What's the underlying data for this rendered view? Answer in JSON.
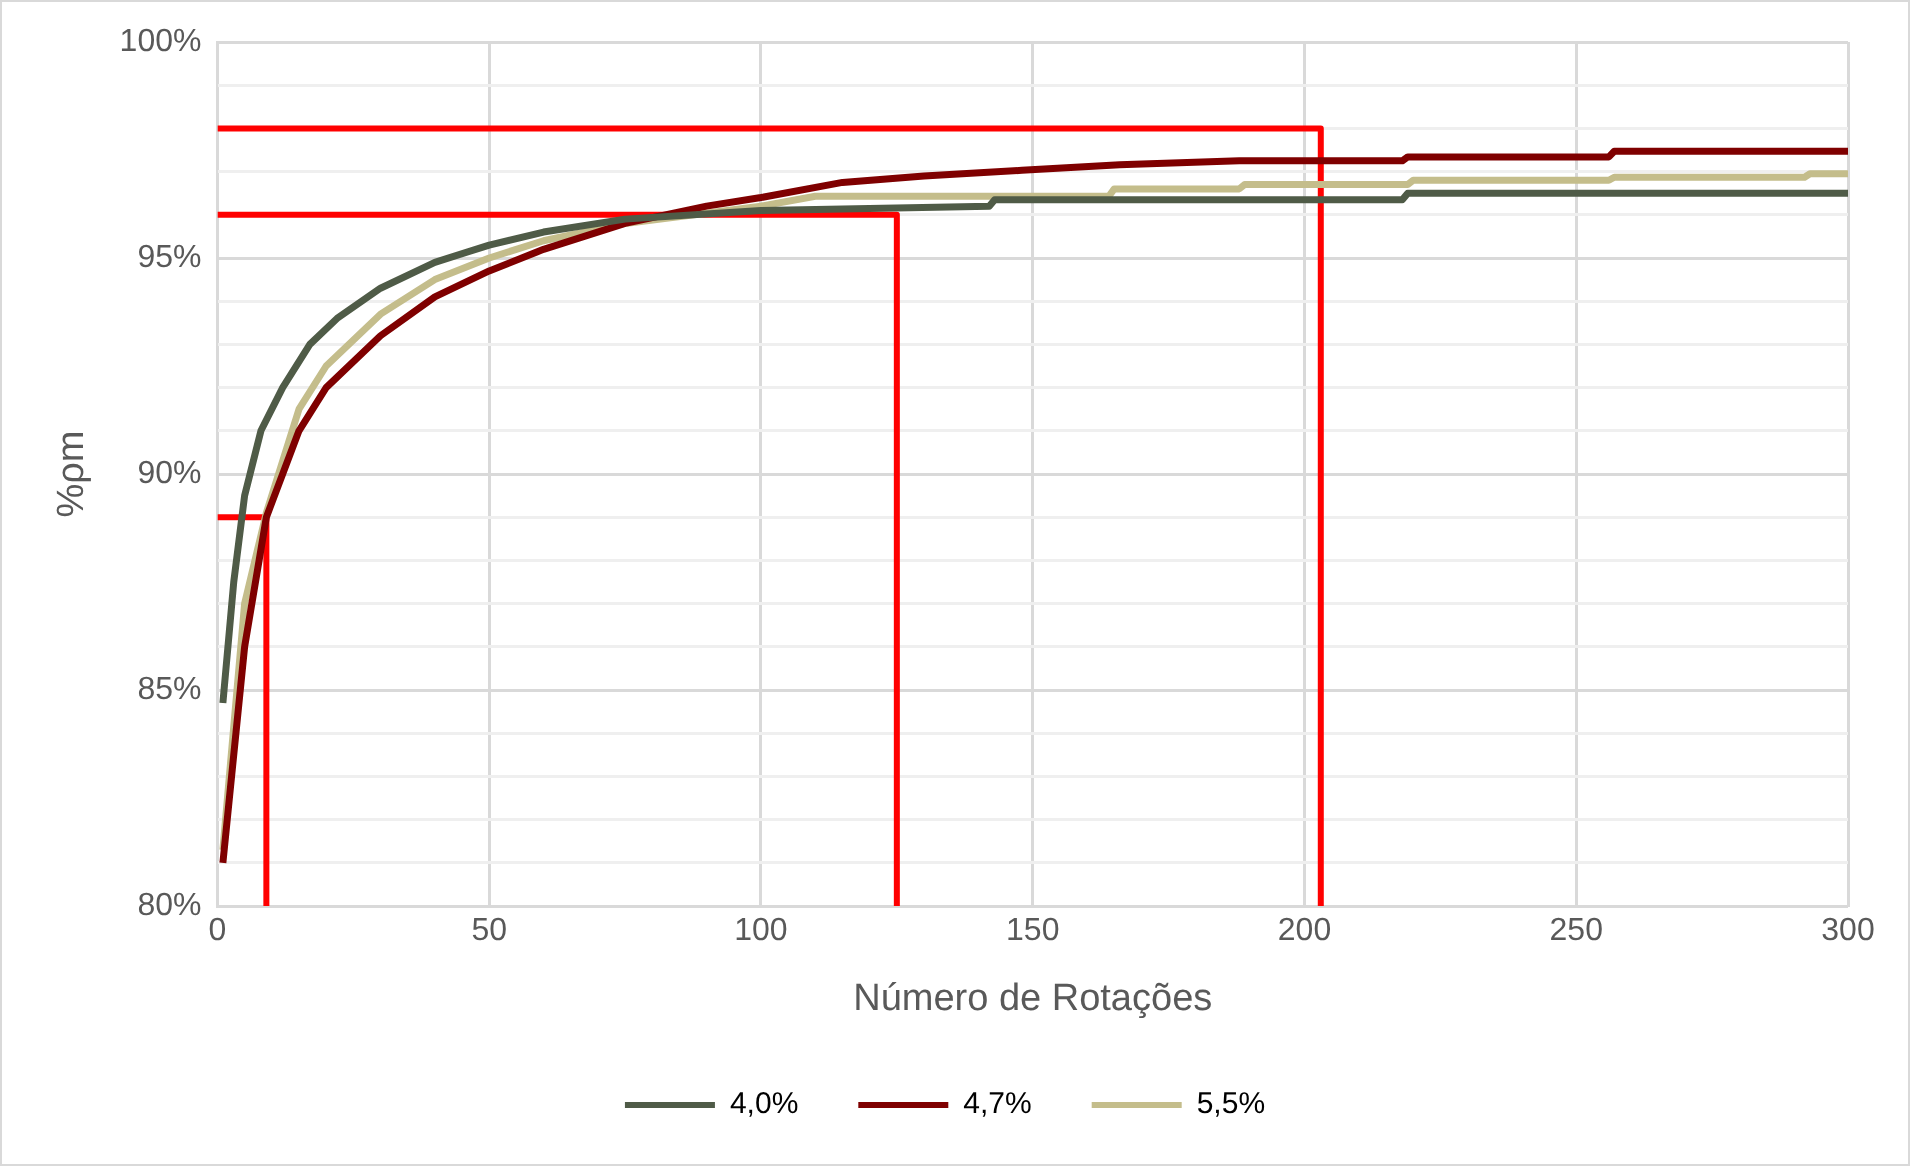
{
  "chart_data": {
    "type": "line",
    "xlabel": "Número de Rotações",
    "ylabel": "%ρm",
    "xlim": [
      0,
      300
    ],
    "xticks": [
      0,
      50,
      100,
      150,
      200,
      250,
      300
    ],
    "ylim": [
      80,
      100
    ],
    "yticks": [
      {
        "value": 80,
        "label": "80%"
      },
      {
        "value": 81,
        "label": null
      },
      {
        "value": 82,
        "label": null
      },
      {
        "value": 83,
        "label": null
      },
      {
        "value": 84,
        "label": null
      },
      {
        "value": 85,
        "label": "85%"
      },
      {
        "value": 86,
        "label": null
      },
      {
        "value": 87,
        "label": null
      },
      {
        "value": 88,
        "label": null
      },
      {
        "value": 89,
        "label": null
      },
      {
        "value": 90,
        "label": "90%"
      },
      {
        "value": 91,
        "label": null
      },
      {
        "value": 92,
        "label": null
      },
      {
        "value": 93,
        "label": null
      },
      {
        "value": 94,
        "label": null
      },
      {
        "value": 95,
        "label": "95%"
      },
      {
        "value": 96,
        "label": null
      },
      {
        "value": 97,
        "label": null
      },
      {
        "value": 98,
        "label": null
      },
      {
        "value": 99,
        "label": null
      },
      {
        "value": 100,
        "label": "100%"
      }
    ],
    "grid": true,
    "legend": "bottom",
    "marker": "none",
    "series": [
      {
        "name": "4,0%",
        "color": "#4f5b47",
        "x": [
          1,
          3,
          5,
          8,
          12,
          17,
          22,
          30,
          40,
          50,
          60,
          75,
          100,
          142,
          143,
          218,
          219,
          300
        ],
        "values": [
          84.7,
          87.5,
          89.5,
          91,
          92,
          93,
          93.6,
          94.3,
          94.9,
          95.3,
          95.6,
          95.9,
          96.1,
          96.2,
          96.35,
          96.35,
          96.5,
          96.5
        ]
      },
      {
        "name": "4,7%",
        "color": "#7f0000",
        "x": [
          1,
          5,
          9,
          15,
          20,
          30,
          40,
          50,
          60,
          75,
          90,
          100,
          115,
          130,
          148,
          166,
          188,
          218,
          219,
          256,
          257,
          300
        ],
        "values": [
          81,
          86,
          89,
          91,
          92,
          93.2,
          94.1,
          94.7,
          95.2,
          95.8,
          96.2,
          96.4,
          96.75,
          96.9,
          97.03,
          97.16,
          97.25,
          97.25,
          97.34,
          97.34,
          97.47,
          97.47
        ]
      },
      {
        "name": "5,5%",
        "color": "#c4bd8b",
        "x": [
          1,
          5,
          9,
          15,
          20,
          30,
          40,
          50,
          60,
          75,
          100,
          110,
          164,
          165,
          188,
          189,
          219,
          220,
          256,
          257,
          292,
          293,
          300
        ],
        "values": [
          81.3,
          87,
          89.1,
          91.5,
          92.5,
          93.7,
          94.5,
          95,
          95.4,
          95.8,
          96.2,
          96.43,
          96.43,
          96.6,
          96.6,
          96.7,
          96.7,
          96.8,
          96.8,
          96.87,
          96.87,
          96.95,
          96.95
        ]
      },
      {
        "color": "#ff0000",
        "x": [
          0,
          203,
          203
        ],
        "values": [
          98,
          98,
          80
        ]
      },
      {
        "color": "#ff0000",
        "x": [
          0,
          125,
          125
        ],
        "values": [
          96,
          96,
          80
        ]
      },
      {
        "color": "#ff0000",
        "x": [
          0,
          9,
          9
        ],
        "values": [
          89,
          89,
          80
        ]
      }
    ]
  }
}
